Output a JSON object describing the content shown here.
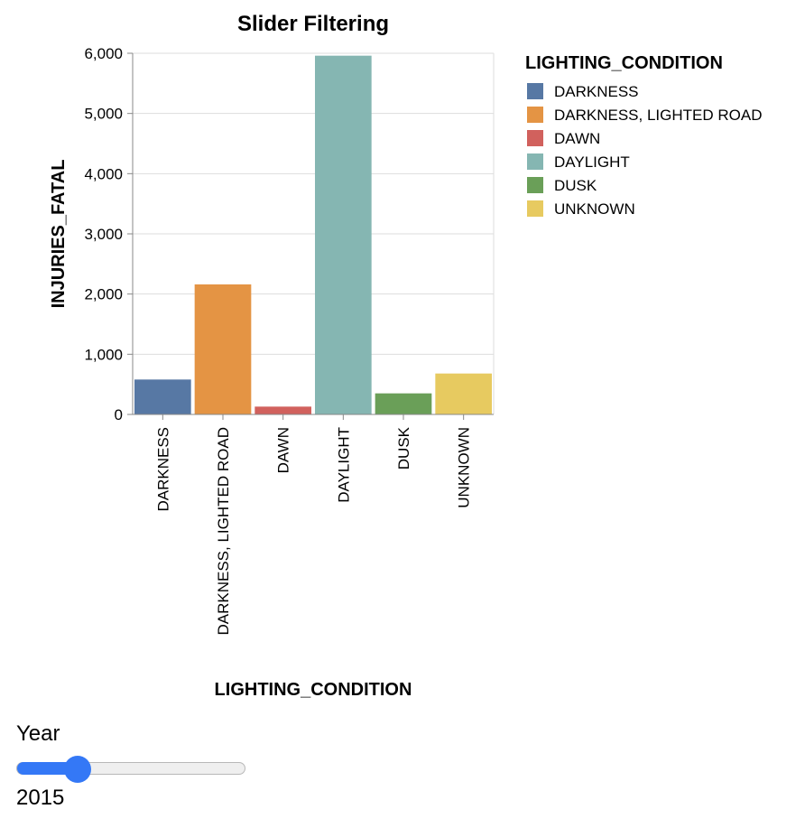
{
  "chart_data": {
    "type": "bar",
    "title": "Slider Filtering",
    "xlabel": "LIGHTING_CONDITION",
    "ylabel": "INJURIES_FATAL",
    "categories": [
      "DARKNESS",
      "DARKNESS, LIGHTED ROAD",
      "DAWN",
      "DAYLIGHT",
      "DUSK",
      "UNKNOWN"
    ],
    "values": [
      580,
      2160,
      130,
      5960,
      350,
      680
    ],
    "ylim": [
      0,
      6000
    ],
    "yticks": [
      0,
      1000,
      2000,
      3000,
      4000,
      5000,
      6000
    ],
    "ytick_labels": [
      "0",
      "1,000",
      "2,000",
      "3,000",
      "4,000",
      "5,000",
      "6,000"
    ],
    "colors": [
      "#5778a4",
      "#e49444",
      "#d1615d",
      "#85b6b2",
      "#6a9f58",
      "#e7ca60"
    ],
    "grid": true,
    "legend": {
      "title": "LIGHTING_CONDITION",
      "placement": "right",
      "entries": [
        "DARKNESS",
        "DARKNESS, LIGHTED ROAD",
        "DAWN",
        "DAYLIGHT",
        "DUSK",
        "UNKNOWN"
      ]
    }
  },
  "slider": {
    "label": "Year",
    "value_text": "2015",
    "fraction": 0.23,
    "accent": "#3478f6"
  }
}
